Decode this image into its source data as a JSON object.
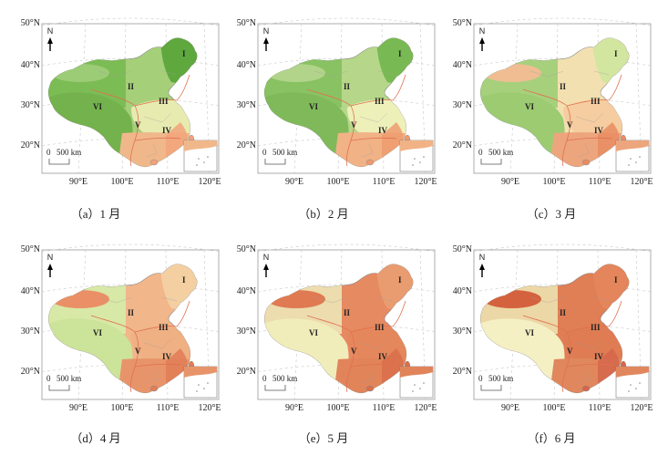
{
  "north_label": "N",
  "scale": {
    "zero": "0",
    "distance": "500 km"
  },
  "lat_labels": [
    "50°N",
    "40°N",
    "30°N",
    "20°N"
  ],
  "lon_labels": [
    "90°E",
    "100°E",
    "110°E",
    "120°E"
  ],
  "regions": [
    "I",
    "II",
    "III",
    "IV",
    "V",
    "VI"
  ],
  "panels": [
    {
      "caption": "（a）1 月",
      "colors": {
        "ne": "#5fa83e",
        "n": "#a6cf7a",
        "w": "#7cbc54",
        "tp": "#73b24c",
        "c": "#e7ebb0",
        "s": "#f0b88a",
        "desert": "#9ccc76",
        "coast": "#f2a37a"
      }
    },
    {
      "caption": "（b）2 月",
      "colors": {
        "ne": "#79b953",
        "n": "#b6d78a",
        "w": "#89c262",
        "tp": "#80b95a",
        "c": "#eef0ba",
        "s": "#f1b285",
        "desert": "#b1d48a",
        "coast": "#ee9b6f"
      }
    },
    {
      "caption": "（c）3 月",
      "colors": {
        "ne": "#d3e6a0",
        "n": "#f3e0b0",
        "w": "#a7d07c",
        "tp": "#9ccb72",
        "c": "#f5cda0",
        "s": "#eda57d",
        "desert": "#f0bd92",
        "coast": "#e88c62"
      }
    },
    {
      "caption": "（d）4 月",
      "colors": {
        "ne": "#f3cfa2",
        "n": "#f1b68a",
        "w": "#d8e8a6",
        "tp": "#cce39a",
        "c": "#efb083",
        "s": "#e8946a",
        "desert": "#ea8f66",
        "coast": "#e07d56"
      }
    },
    {
      "caption": "（e）5 月",
      "colors": {
        "ne": "#e99c70",
        "n": "#e68a61",
        "w": "#ecdcae",
        "tp": "#f1edbb",
        "c": "#e5875d",
        "s": "#e1845a",
        "desert": "#df7a52",
        "coast": "#d96f4b"
      }
    },
    {
      "caption": "（f）6 月",
      "colors": {
        "ne": "#e4855b",
        "n": "#e07e55",
        "w": "#ecd7a6",
        "tp": "#f5f0c4",
        "c": "#df7c53",
        "s": "#e0875d",
        "desert": "#d4623f",
        "coast": "#d5664a"
      }
    }
  ]
}
